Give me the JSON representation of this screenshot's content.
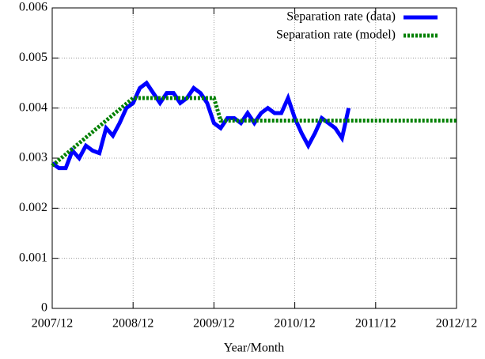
{
  "chart_data": {
    "type": "line",
    "xlabel": "Year/Month",
    "xlim": [
      "2007/12",
      "2012/12"
    ],
    "xticks": [
      "2007/12",
      "2008/12",
      "2009/12",
      "2010/12",
      "2011/12",
      "2012/12"
    ],
    "ylim": [
      0,
      0.006
    ],
    "yticks": [
      0,
      0.001,
      0.002,
      0.003,
      0.004,
      0.005,
      0.006
    ],
    "grid": true,
    "legend": "top-right",
    "series": [
      {
        "name": "Separation rate (data)",
        "color": "#0000ff",
        "style": "solid",
        "x": [
          "2007/12",
          "2008/01",
          "2008/02",
          "2008/03",
          "2008/04",
          "2008/05",
          "2008/06",
          "2008/07",
          "2008/08",
          "2008/09",
          "2008/10",
          "2008/11",
          "2008/12",
          "2009/01",
          "2009/02",
          "2009/03",
          "2009/04",
          "2009/05",
          "2009/06",
          "2009/07",
          "2009/08",
          "2009/09",
          "2009/10",
          "2009/11",
          "2009/12",
          "2010/01",
          "2010/02",
          "2010/03",
          "2010/04",
          "2010/05",
          "2010/06",
          "2010/07",
          "2010/08",
          "2010/09",
          "2010/10",
          "2010/11",
          "2010/12",
          "2011/01",
          "2011/02",
          "2011/03",
          "2011/04",
          "2011/05",
          "2011/06",
          "2011/07",
          "2011/08"
        ],
        "values": [
          0.0029,
          0.0028,
          0.0028,
          0.00315,
          0.003,
          0.00325,
          0.00315,
          0.0031,
          0.0036,
          0.00345,
          0.0037,
          0.004,
          0.0041,
          0.0044,
          0.0045,
          0.0043,
          0.0041,
          0.0043,
          0.0043,
          0.0041,
          0.0042,
          0.0044,
          0.0043,
          0.0041,
          0.0037,
          0.0036,
          0.0038,
          0.0038,
          0.0037,
          0.0039,
          0.0037,
          0.0039,
          0.004,
          0.0039,
          0.0039,
          0.0042,
          0.0038,
          0.0035,
          0.00325,
          0.0035,
          0.0038,
          0.0037,
          0.0036,
          0.0034,
          0.004
        ]
      },
      {
        "name": "Separation rate (model)",
        "color": "#008000",
        "style": "dotted",
        "x": [
          "2007/12",
          "2008/12",
          "2009/12",
          "2010/01",
          "2012/12"
        ],
        "values": [
          0.00285,
          0.0042,
          0.0042,
          0.00375,
          0.00375
        ]
      }
    ]
  }
}
